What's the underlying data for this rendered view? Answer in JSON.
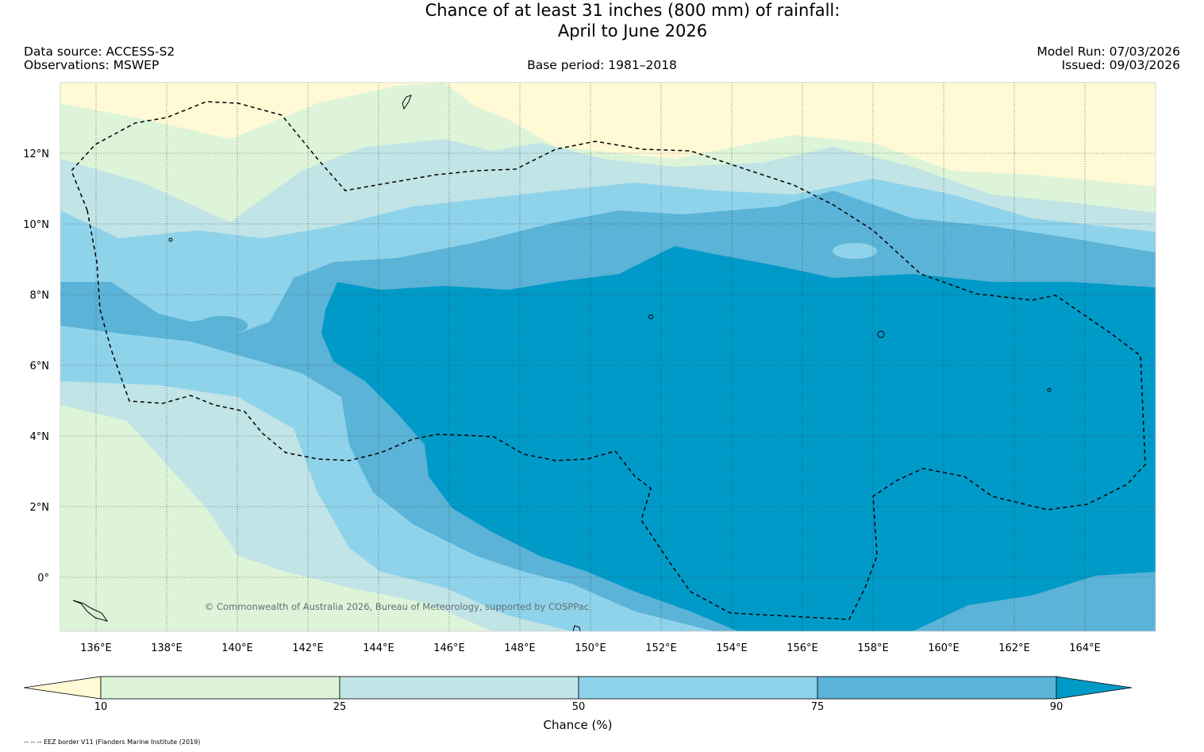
{
  "title": {
    "line1": "Chance of at least 31 inches (800  mm) of rainfall:",
    "line2": "April to June 2026"
  },
  "info": {
    "data_source": "Data source: ACCESS-S2",
    "observations": "Observations: MSWEP",
    "base_period": "Base period: 1981–2018",
    "model_run": "Model Run: 07/03/2026",
    "issued": "Issued: 09/03/2026"
  },
  "copyright": "© Commonwealth of Australia 2026, Bureau of Meteorology, supported by COSPPac",
  "axes": {
    "lat_labels": [
      "12°N",
      "10°N",
      "8°N",
      "6°N",
      "4°N",
      "2°N",
      "0°"
    ],
    "lon_labels": [
      "136°E",
      "138°E",
      "140°E",
      "142°E",
      "144°E",
      "146°E",
      "148°E",
      "150°E",
      "152°E",
      "154°E",
      "156°E",
      "158°E",
      "160°E",
      "162°E",
      "164°E"
    ]
  },
  "colorbar": {
    "title": "Chance (%)",
    "tick_labels": [
      "10",
      "25",
      "50",
      "75",
      "90"
    ],
    "colors": [
      "#fff9d5",
      "#ddf4d9",
      "#c1e4e6",
      "#8fd3ea",
      "#5bb3d7",
      "#009ac8"
    ]
  },
  "eez_note": "-- -- -- EEZ border V11 (Flanders Marine Institute (2019)"
}
